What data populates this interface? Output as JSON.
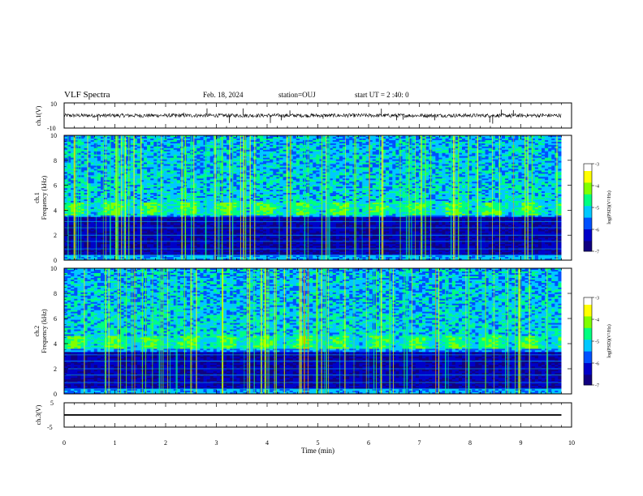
{
  "header": {
    "title": "VLF Spectra",
    "date": "Feb. 18, 2024",
    "station": "station=OUJ",
    "start_ut": "start UT =  2 :40: 0"
  },
  "colors": {
    "colormap": [
      "#100080",
      "#0000c8",
      "#0050ff",
      "#00c8ff",
      "#00ff80",
      "#80ff00",
      "#ffff00",
      "#ff9000",
      "#ff0000",
      "#ffffff"
    ],
    "waveform": "#000000",
    "axis": "#000000"
  },
  "chart_data": [
    {
      "type": "line",
      "panel": "ch1-waveform",
      "ylabel": "ch.1(V)",
      "yticks": [
        "10",
        "-10"
      ],
      "ylim": [
        -10,
        10
      ],
      "xlim": [
        0,
        10
      ],
      "description_values": {
        "baseline": 0,
        "noise_amplitude": 1.5,
        "spike_min": -7,
        "spike_max": 6
      }
    },
    {
      "type": "heatmap",
      "panel": "ch1-spectrogram",
      "ylabel": "ch.1\nFrequency (kHz)",
      "xlim": [
        0,
        10
      ],
      "ylim": [
        0,
        10
      ],
      "yticks": [
        "0",
        "2",
        "4",
        "6",
        "8",
        "10"
      ],
      "colorbar": {
        "label": "log(PSD)(V²/Hz)",
        "range": [
          -7,
          -3
        ],
        "ticks": [
          "-3",
          "-4",
          "-5",
          "-6",
          "-7"
        ]
      },
      "data_end_min": 9.8,
      "features": {
        "band_low_khz": [
          0,
          3.5
        ],
        "chorus_band_khz": [
          3.6,
          4.6
        ],
        "hiss_band_khz": [
          4.6,
          10
        ]
      }
    },
    {
      "type": "heatmap",
      "panel": "ch2-spectrogram",
      "ylabel": "ch.2\nFrequency (kHz)",
      "xlim": [
        0,
        10
      ],
      "ylim": [
        0,
        10
      ],
      "yticks": [
        "0",
        "2",
        "4",
        "6",
        "8",
        "10"
      ],
      "colorbar": {
        "label": "log(PSD)(V²/Hz)",
        "range": [
          -7,
          -3
        ],
        "ticks": [
          "-3",
          "-4",
          "-5",
          "-6",
          "-7"
        ]
      },
      "data_end_min": 9.8,
      "features": {
        "band_low_khz": [
          0,
          3.3
        ],
        "chorus_band_khz": [
          3.6,
          4.6
        ],
        "hiss_band_khz": [
          4.6,
          10
        ]
      }
    },
    {
      "type": "line",
      "panel": "ch3-waveform",
      "ylabel": "ch.3(V)",
      "yticks": [
        "5",
        "0",
        "-5"
      ],
      "ylim": [
        -5,
        5
      ],
      "xlim": [
        0,
        10
      ],
      "xlabel": "Time (min)",
      "xticks": [
        "0",
        "1",
        "2",
        "3",
        "4",
        "5",
        "6",
        "7",
        "8",
        "9",
        "10"
      ],
      "description_values": {
        "baseline": 0,
        "noise_amplitude": 0.3
      }
    }
  ]
}
